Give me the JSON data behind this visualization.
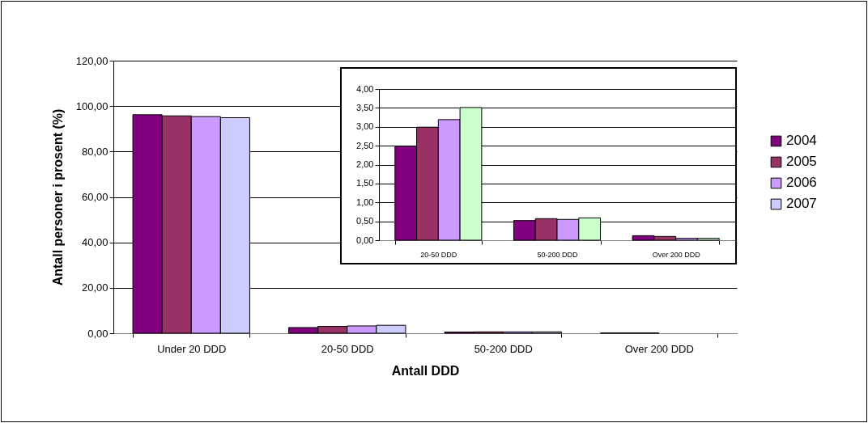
{
  "chart_data": [
    {
      "type": "bar",
      "xlabel": "Antall DDD",
      "ylabel": "Antall personer i prosent (%)",
      "categories": [
        "Under 20 DDD",
        "20-50 DDD",
        "50-200 DDD",
        "Over 200 DDD"
      ],
      "series": [
        {
          "name": "2004",
          "color": "#800080",
          "values": [
            96.2,
            2.5,
            0.5,
            0.1
          ]
        },
        {
          "name": "2005",
          "color": "#993366",
          "values": [
            95.7,
            3.0,
            0.6,
            0.1
          ]
        },
        {
          "name": "2006",
          "color": "#cc99ff",
          "values": [
            95.4,
            3.2,
            0.6,
            null
          ]
        },
        {
          "name": "2007",
          "color": "#ccccff",
          "values": [
            94.9,
            3.5,
            0.6,
            null
          ]
        }
      ],
      "ylim": [
        0,
        120
      ],
      "yticks": [
        {
          "value": 0,
          "label": "0,00"
        },
        {
          "value": 20,
          "label": "20,00"
        },
        {
          "value": 40,
          "label": "40,00"
        },
        {
          "value": 60,
          "label": "60,00"
        },
        {
          "value": 80,
          "label": "80,00"
        },
        {
          "value": 100,
          "label": "100,00"
        },
        {
          "value": 120,
          "label": "120,00"
        }
      ],
      "grid": "y",
      "legend": "right"
    },
    {
      "type": "bar",
      "categories": [
        "20-50 DDD",
        "50-200 DDD",
        "Over 200 DDD"
      ],
      "series": [
        {
          "color": "#800080",
          "values": [
            2.49,
            0.52,
            0.12
          ]
        },
        {
          "color": "#993366",
          "values": [
            2.99,
            0.57,
            0.1
          ]
        },
        {
          "color": "#cc99ff",
          "values": [
            3.19,
            0.55,
            0.05
          ]
        },
        {
          "color": "#ccffcc",
          "values": [
            3.51,
            0.59,
            0.05
          ]
        }
      ],
      "ylim": [
        0,
        4
      ],
      "yticks": [
        {
          "value": 0,
          "label": "0,00"
        },
        {
          "value": 0.5,
          "label": "0,50"
        },
        {
          "value": 1,
          "label": "1,00"
        },
        {
          "value": 1.5,
          "label": "1,50"
        },
        {
          "value": 2,
          "label": "2,00"
        },
        {
          "value": 2.5,
          "label": "2,50"
        },
        {
          "value": 3,
          "label": "3,00"
        },
        {
          "value": 3.5,
          "label": "3,50"
        },
        {
          "value": 4,
          "label": "4,00"
        }
      ],
      "grid": "y",
      "legend": false
    }
  ]
}
